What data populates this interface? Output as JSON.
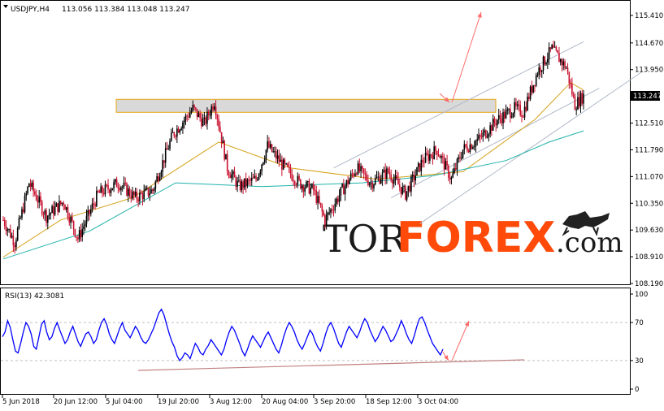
{
  "chart_data": [
    {
      "type": "candlestick",
      "symbol_label": "USDJPY,H4",
      "ohlc_label": "113.056 113.384 113.048 113.247",
      "current_price_label": "113.247",
      "ylim": [
        108.19,
        115.41
      ],
      "y_ticks": [
        "115.410",
        "114.670",
        "113.950",
        "113.247",
        "112.510",
        "111.790",
        "111.070",
        "110.350",
        "109.630",
        "108.910",
        "108.190"
      ],
      "x_tick_labels": [
        "5 Jun 2018",
        "20 Jun 12:00",
        "5 Jul 04:00",
        "19 Jul 20:00",
        "3 Aug 12:00",
        "20 Aug 04:00",
        "3 Sep 20:00",
        "18 Sep 12:00",
        "3 Oct 04:00"
      ],
      "price_anchors": [
        [
          0,
          109.9
        ],
        [
          8,
          109.3
        ],
        [
          18,
          110.9
        ],
        [
          30,
          110.0
        ],
        [
          42,
          110.4
        ],
        [
          52,
          109.4
        ],
        [
          66,
          110.6
        ],
        [
          80,
          110.9
        ],
        [
          92,
          110.5
        ],
        [
          104,
          110.7
        ],
        [
          118,
          112.2
        ],
        [
          132,
          112.9
        ],
        [
          140,
          112.5
        ],
        [
          147,
          113.1
        ],
        [
          156,
          111.3
        ],
        [
          164,
          110.8
        ],
        [
          176,
          111.0
        ],
        [
          184,
          111.9
        ],
        [
          194,
          111.4
        ],
        [
          206,
          110.9
        ],
        [
          216,
          110.7
        ],
        [
          224,
          109.9
        ],
        [
          236,
          110.7
        ],
        [
          246,
          111.3
        ],
        [
          256,
          110.9
        ],
        [
          268,
          111.2
        ],
        [
          280,
          110.6
        ],
        [
          292,
          111.5
        ],
        [
          302,
          111.8
        ],
        [
          312,
          111.0
        ],
        [
          320,
          111.8
        ],
        [
          332,
          112.1
        ],
        [
          344,
          112.6
        ],
        [
          356,
          112.9
        ],
        [
          362,
          112.8
        ],
        [
          372,
          113.9
        ],
        [
          382,
          114.5
        ],
        [
          392,
          114.0
        ],
        [
          398,
          113.0
        ],
        [
          404,
          113.25
        ]
      ],
      "moving_averages": [
        {
          "color": "#d4a017",
          "points": [
            [
              0,
              108.9
            ],
            [
              40,
              109.9
            ],
            [
              90,
              110.5
            ],
            [
              150,
              112.0
            ],
            [
              200,
              111.3
            ],
            [
              260,
              111.0
            ],
            [
              320,
              111.2
            ],
            [
              370,
              112.6
            ],
            [
              395,
              113.6
            ],
            [
              404,
              113.4
            ]
          ]
        },
        {
          "color": "#20b2aa",
          "points": [
            [
              0,
              108.85
            ],
            [
              60,
              109.6
            ],
            [
              120,
              110.9
            ],
            [
              180,
              110.8
            ],
            [
              250,
              110.9
            ],
            [
              300,
              111.1
            ],
            [
              350,
              111.5
            ],
            [
              380,
              112.0
            ],
            [
              404,
              112.3
            ]
          ]
        }
      ],
      "resistance_zone": {
        "from_price": 112.8,
        "to_price": 113.15,
        "fill": "#d9d9d9",
        "border": "#e6a817"
      },
      "regression_channel_color": "#b0b8c8",
      "forecast_arrow_color": "#ff6b6b",
      "up_candle_color": "#000000",
      "down_candle_color": "#c8102e"
    },
    {
      "type": "line",
      "indicator_label": "RSI(13) 42.3081",
      "ylim": [
        0,
        100
      ],
      "y_ticks": [
        "100",
        "70",
        "30",
        "0"
      ],
      "line_color": "#0000ff",
      "trendline_color": "#c08080",
      "values": [
        55,
        60,
        72,
        65,
        52,
        40,
        38,
        48,
        60,
        70,
        66,
        58,
        45,
        42,
        55,
        68,
        72,
        60,
        52,
        55,
        64,
        70,
        62,
        55,
        48,
        52,
        60,
        66,
        58,
        50,
        45,
        52,
        58,
        60,
        55,
        48,
        52,
        62,
        70,
        74,
        68,
        58,
        52,
        48,
        56,
        64,
        70,
        62,
        58,
        54,
        60,
        66,
        62,
        55,
        50,
        48,
        52,
        58,
        64,
        72,
        80,
        84,
        78,
        68,
        58,
        50,
        44,
        35,
        30,
        33,
        38,
        36,
        32,
        40,
        48,
        44,
        38,
        36,
        42,
        46,
        52,
        48,
        44,
        40,
        36,
        42,
        52,
        60,
        66,
        62,
        55,
        48,
        40,
        35,
        42,
        50,
        56,
        52,
        48,
        44,
        50,
        56,
        60,
        54,
        48,
        42,
        38,
        46,
        56,
        64,
        70,
        66,
        60,
        52,
        46,
        42,
        48,
        55,
        62,
        58,
        50,
        44,
        40,
        48,
        58,
        66,
        70,
        64,
        56,
        48,
        44,
        52,
        60,
        66,
        62,
        58,
        54,
        60,
        68,
        74,
        70,
        62,
        56,
        50,
        54,
        60,
        66,
        62,
        56,
        50,
        52,
        58,
        64,
        72,
        66,
        58,
        52,
        48,
        56,
        66,
        74,
        76,
        70,
        62,
        55,
        48,
        44,
        40,
        36,
        42
      ]
    }
  ],
  "watermark": {
    "tor": "TOR",
    "forex": "FOREX",
    "com": ".com",
    "bull_icon": "bull-icon"
  }
}
